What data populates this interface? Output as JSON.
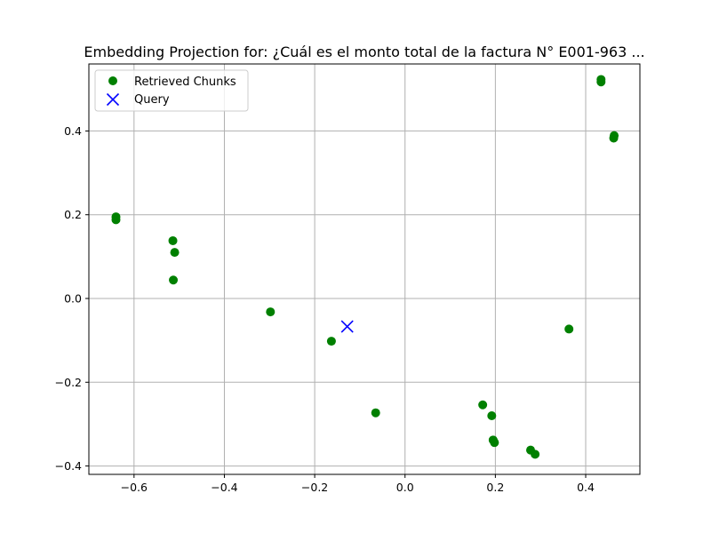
{
  "colors": {
    "chunks": "#008000",
    "query": "#0000ff",
    "grid": "#b0b0b0",
    "axes": "#000000"
  },
  "chart_data": {
    "type": "scatter",
    "title": "Embedding Projection for: ¿Cuál es el monto total de la factura N° E001-963 ...",
    "xlabel": "",
    "ylabel": "",
    "xlim": [
      -0.7,
      0.52
    ],
    "ylim": [
      -0.42,
      0.56
    ],
    "grid": true,
    "legend": "top-left",
    "x_ticks": [
      -0.6,
      -0.4,
      -0.2,
      0.0,
      0.2,
      0.4
    ],
    "x_tick_labels": [
      "−0.6",
      "−0.4",
      "−0.2",
      "0.0",
      "0.2",
      "0.4"
    ],
    "y_ticks": [
      -0.4,
      -0.2,
      0.0,
      0.2,
      0.4
    ],
    "y_tick_labels": [
      "−0.4",
      "−0.2",
      "0.0",
      "0.2",
      "0.4"
    ],
    "series": [
      {
        "name": "Retrieved Chunks",
        "marker": "circle",
        "points": [
          {
            "x": -0.64,
            "y": 0.195
          },
          {
            "x": -0.64,
            "y": 0.188
          },
          {
            "x": -0.514,
            "y": 0.138
          },
          {
            "x": -0.51,
            "y": 0.11
          },
          {
            "x": -0.513,
            "y": 0.044
          },
          {
            "x": -0.298,
            "y": -0.032
          },
          {
            "x": -0.163,
            "y": -0.102
          },
          {
            "x": -0.065,
            "y": -0.273
          },
          {
            "x": 0.172,
            "y": -0.254
          },
          {
            "x": 0.192,
            "y": -0.28
          },
          {
            "x": 0.195,
            "y": -0.338
          },
          {
            "x": 0.198,
            "y": -0.344
          },
          {
            "x": 0.278,
            "y": -0.362
          },
          {
            "x": 0.288,
            "y": -0.372
          },
          {
            "x": 0.363,
            "y": -0.073
          },
          {
            "x": 0.434,
            "y": 0.523
          },
          {
            "x": 0.434,
            "y": 0.517
          },
          {
            "x": 0.463,
            "y": 0.389
          },
          {
            "x": 0.462,
            "y": 0.383
          }
        ]
      },
      {
        "name": "Query",
        "marker": "x",
        "points": [
          {
            "x": -0.128,
            "y": -0.067
          }
        ]
      }
    ]
  }
}
